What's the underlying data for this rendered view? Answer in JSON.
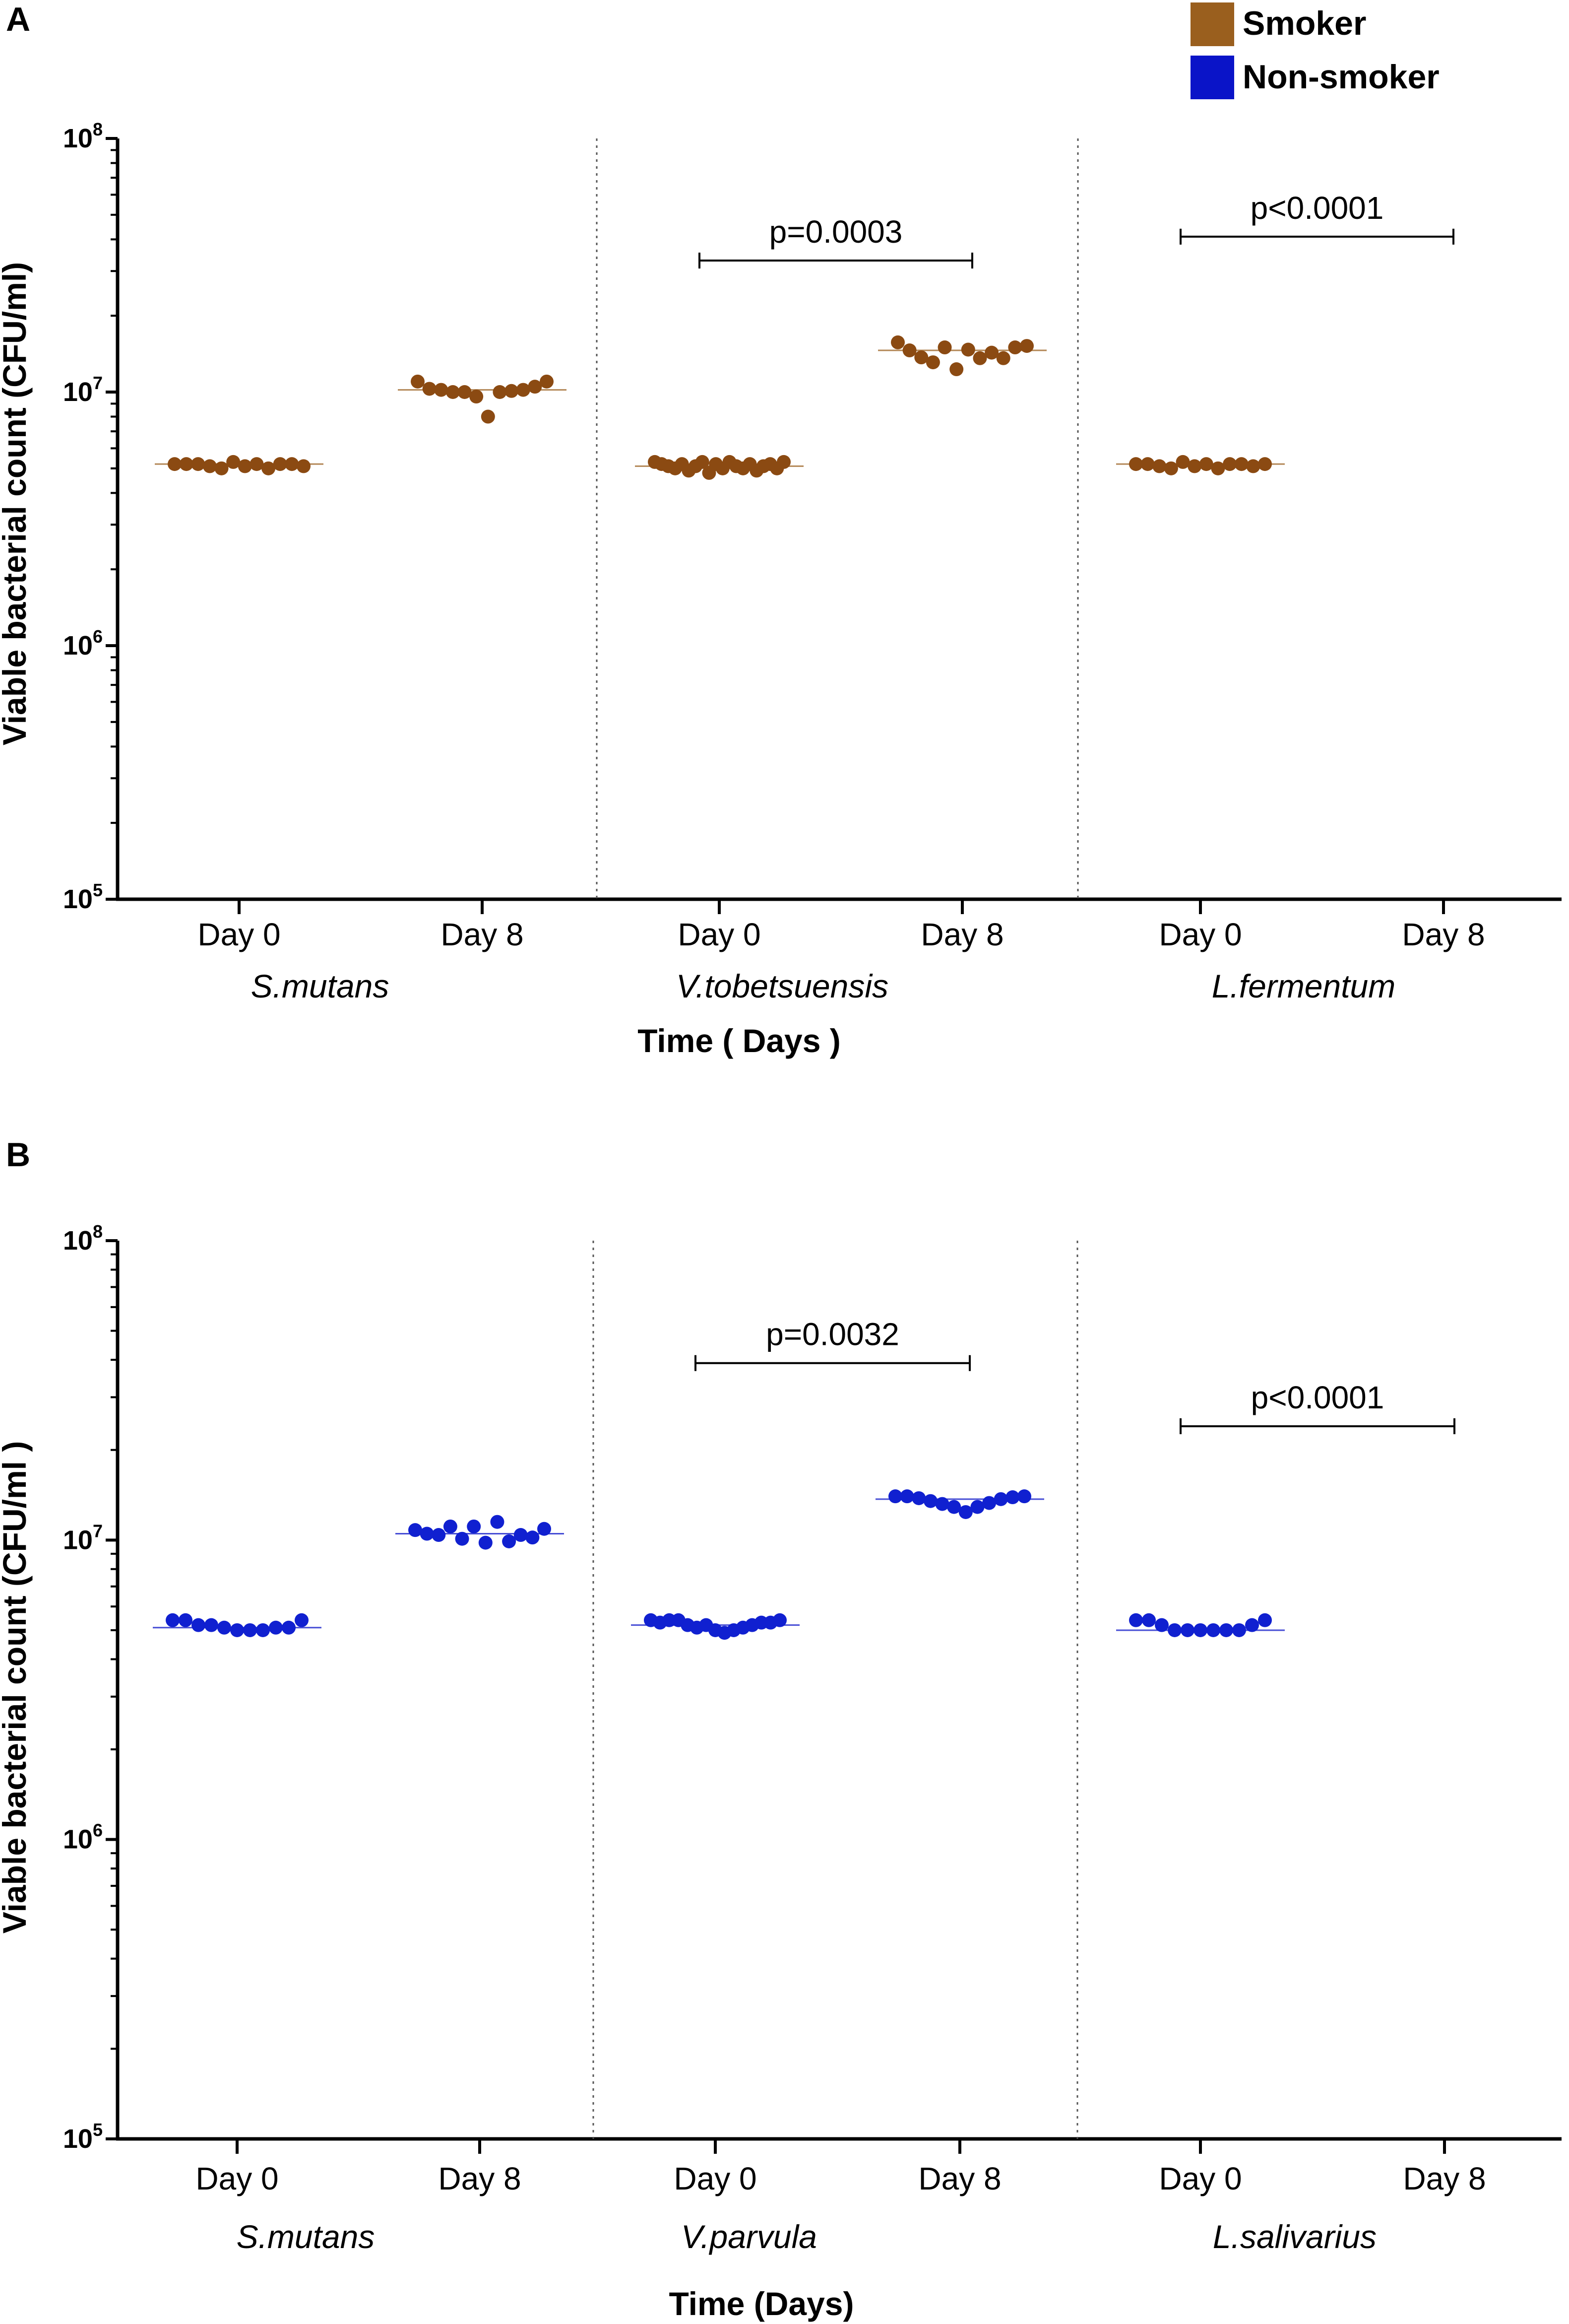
{
  "legend": {
    "items": [
      {
        "label": "Smoker",
        "color": "#9a5f1e"
      },
      {
        "label": "Non-smoker",
        "color": "#0a14c8"
      }
    ]
  },
  "chart_data": [
    {
      "type": "scatter",
      "panel": "A",
      "series_name": "Smoker",
      "color": "#9a5f1e",
      "point_color": "#8b4a12",
      "xlabel": "Time ( Days )",
      "ylabel": "Viable bacterial count (CFU/ml)",
      "yscale": "log",
      "ylim": [
        100000,
        100000000
      ],
      "yticks": [
        {
          "base": "10",
          "exp": "5"
        },
        {
          "base": "10",
          "exp": "6"
        },
        {
          "base": "10",
          "exp": "7"
        },
        {
          "base": "10",
          "exp": "8"
        }
      ],
      "groups": [
        {
          "species": "S.mutans",
          "day": "Day 0",
          "values": [
            5200000,
            5200000,
            5200000,
            5100000,
            5000000,
            5300000,
            5100000,
            5200000,
            5000000,
            5200000,
            5200000,
            5100000
          ]
        },
        {
          "species": "S.mutans",
          "day": "Day 8",
          "values": [
            11000000,
            10300000,
            10200000,
            10000000,
            10000000,
            9600000,
            8000000,
            10000000,
            10100000,
            10200000,
            10500000,
            11000000
          ]
        },
        {
          "species": "V.tobetsuensis",
          "day": "Day 0",
          "values": [
            5300000,
            5200000,
            5100000,
            5000000,
            5200000,
            4900000,
            5100000,
            5300000,
            4800000,
            5200000,
            5000000,
            5300000,
            5100000,
            5000000,
            5200000,
            4900000,
            5100000,
            5200000,
            5000000,
            5300000
          ]
        },
        {
          "species": "V.tobetsuensis",
          "day": "Day 8",
          "values": [
            15700000,
            14600000,
            13700000,
            13100000,
            15000000,
            12300000,
            14700000,
            13600000,
            14300000,
            13600000,
            15000000,
            15200000
          ]
        },
        {
          "species": "L.fermentum",
          "day": "Day 0",
          "values": [
            5200000,
            5200000,
            5100000,
            5000000,
            5300000,
            5100000,
            5200000,
            5000000,
            5200000,
            5200000,
            5100000,
            5200000
          ]
        },
        {
          "species": "L.fermentum",
          "day": "Day 8",
          "values": []
        }
      ],
      "species_labels": [
        "S.mutans",
        "V.tobetsuensis",
        "L.fermentum"
      ],
      "day_labels": [
        "Day 0",
        "Day 8",
        "Day 0",
        "Day 8",
        "Day 0",
        "Day 8"
      ],
      "annotations": [
        {
          "text": "p=0.0003",
          "from_group": 2,
          "to_group": 3,
          "y": 33000000
        },
        {
          "text": "p<0.0001",
          "from_group": 4,
          "to_group": 5,
          "y": 41000000
        }
      ]
    },
    {
      "type": "scatter",
      "panel": "B",
      "series_name": "Non-smoker",
      "color": "#0a14c8",
      "point_color": "#1020d0",
      "xlabel": "Time (Days)",
      "ylabel": "Viable bacterial count (CFU/ml )",
      "yscale": "log",
      "ylim": [
        100000,
        100000000
      ],
      "yticks": [
        {
          "base": "10",
          "exp": "5"
        },
        {
          "base": "10",
          "exp": "6"
        },
        {
          "base": "10",
          "exp": "7"
        },
        {
          "base": "10",
          "exp": "8"
        }
      ],
      "groups": [
        {
          "species": "S.mutans",
          "day": "Day 0",
          "values": [
            5400000,
            5400000,
            5200000,
            5200000,
            5100000,
            5000000,
            5000000,
            5000000,
            5100000,
            5100000,
            5400000
          ]
        },
        {
          "species": "S.mutans",
          "day": "Day 8",
          "values": [
            10800000,
            10500000,
            10400000,
            11100000,
            10100000,
            11100000,
            9800000,
            11500000,
            9900000,
            10400000,
            10200000,
            10900000
          ]
        },
        {
          "species": "V.parvula",
          "day": "Day 0",
          "values": [
            5400000,
            5300000,
            5400000,
            5400000,
            5200000,
            5100000,
            5200000,
            5000000,
            4900000,
            5000000,
            5100000,
            5200000,
            5300000,
            5300000,
            5400000
          ]
        },
        {
          "species": "V.parvula",
          "day": "Day 8",
          "values": [
            14000000,
            14000000,
            13800000,
            13500000,
            13200000,
            12900000,
            12400000,
            12900000,
            13300000,
            13700000,
            13900000,
            14000000
          ]
        },
        {
          "species": "L.salivarius",
          "day": "Day 0",
          "values": [
            5400000,
            5400000,
            5200000,
            5000000,
            5000000,
            5000000,
            5000000,
            5000000,
            5000000,
            5200000,
            5400000
          ]
        },
        {
          "species": "L.salivarius",
          "day": "Day 8",
          "values": []
        }
      ],
      "species_labels": [
        "S.mutans",
        "V.parvula",
        "L.salivarius"
      ],
      "day_labels": [
        "Day 0",
        "Day 8",
        "Day 0",
        "Day 8",
        "Day 0",
        "Day 8"
      ],
      "annotations": [
        {
          "text": "p=0.0032",
          "from_group": 2,
          "to_group": 3,
          "y": 39000000
        },
        {
          "text": "p<0.0001",
          "from_group": 4,
          "to_group": 5,
          "y": 24000000
        }
      ]
    }
  ]
}
